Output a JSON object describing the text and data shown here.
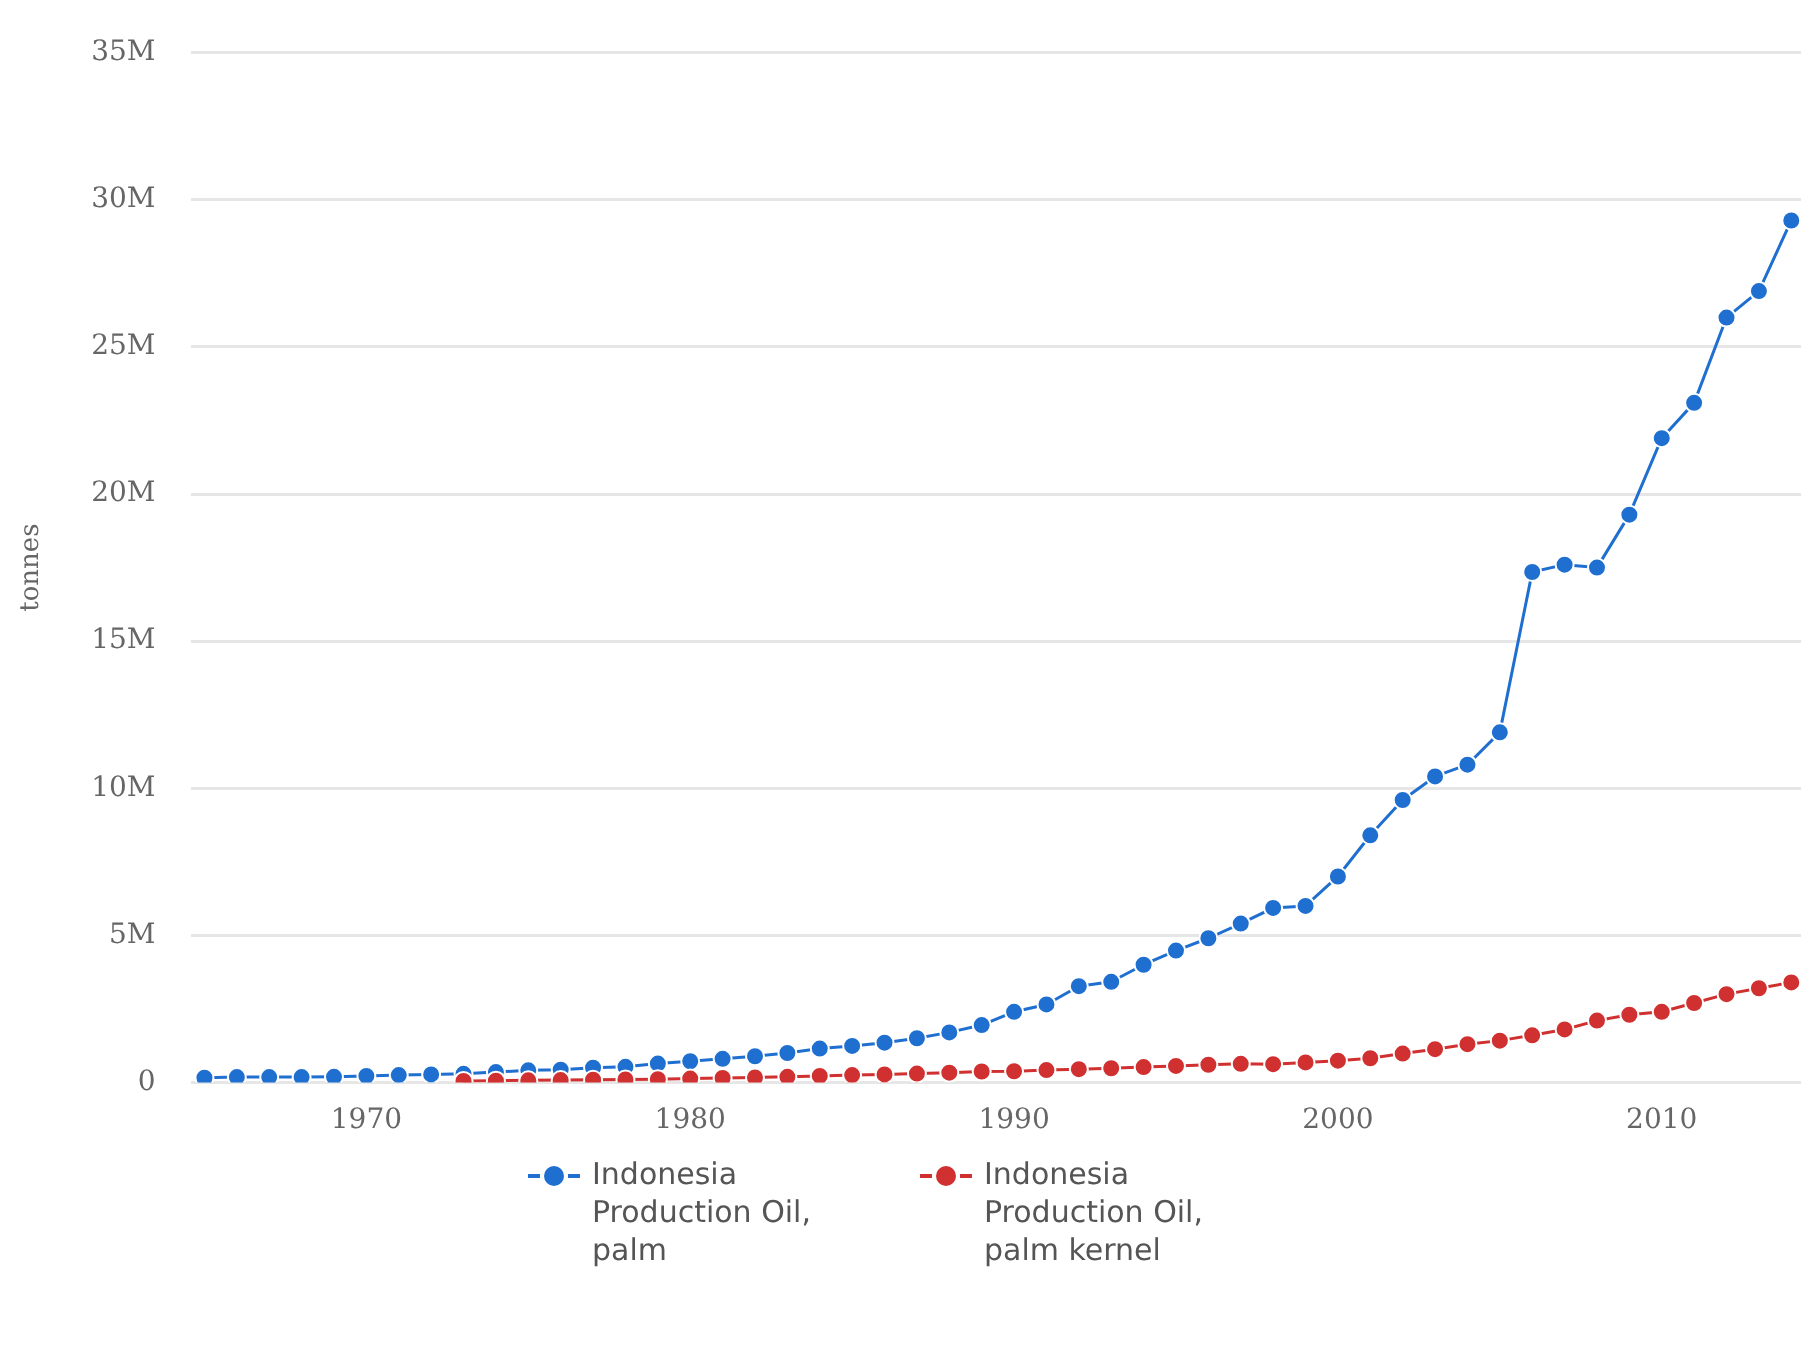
{
  "chart_data": {
    "type": "line",
    "ylabel": "tonnes",
    "x": [
      1965,
      1966,
      1967,
      1968,
      1969,
      1970,
      1971,
      1972,
      1973,
      1974,
      1975,
      1976,
      1977,
      1978,
      1979,
      1980,
      1981,
      1982,
      1983,
      1984,
      1985,
      1986,
      1987,
      1988,
      1989,
      1990,
      1991,
      1992,
      1993,
      1994,
      1995,
      1996,
      1997,
      1998,
      1999,
      2000,
      2001,
      2002,
      2003,
      2004,
      2005,
      2006,
      2007,
      2008,
      2009,
      2010,
      2011,
      2012,
      2013,
      2014
    ],
    "series": [
      {
        "name": "Indonesia Production Oil, palm",
        "color": "#1f6fd0",
        "values": [
          160000,
          180000,
          180000,
          180000,
          190000,
          220000,
          250000,
          270000,
          290000,
          350000,
          410000,
          430000,
          500000,
          530000,
          640000,
          720000,
          800000,
          890000,
          1000000,
          1150000,
          1240000,
          1350000,
          1500000,
          1700000,
          1950000,
          2400000,
          2650000,
          3270000,
          3420000,
          4000000,
          4480000,
          4900000,
          5400000,
          5930000,
          6000000,
          7000000,
          8400000,
          9600000,
          10400000,
          10800000,
          11900000,
          17350000,
          17600000,
          17500000,
          19300000,
          21900000,
          23100000,
          26000000,
          26900000,
          29300000
        ]
      },
      {
        "name": "Indonesia Production Oil, palm kernel",
        "color": "#d0302f",
        "x": [
          1973,
          1974,
          1975,
          1976,
          1977,
          1978,
          1979,
          1980,
          1981,
          1982,
          1983,
          1984,
          1985,
          1986,
          1987,
          1988,
          1989,
          1990,
          1991,
          1992,
          1993,
          1994,
          1995,
          1996,
          1997,
          1998,
          1999,
          2000,
          2001,
          2002,
          2003,
          2004,
          2005,
          2006,
          2007,
          2008,
          2009,
          2010,
          2011,
          2012,
          2013,
          2014
        ],
        "values": [
          50000,
          60000,
          70000,
          80000,
          90000,
          100000,
          110000,
          130000,
          150000,
          170000,
          190000,
          220000,
          250000,
          270000,
          300000,
          330000,
          370000,
          380000,
          420000,
          450000,
          480000,
          520000,
          560000,
          600000,
          630000,
          620000,
          680000,
          740000,
          820000,
          980000,
          1130000,
          1300000,
          1420000,
          1600000,
          1800000,
          2100000,
          2300000,
          2400000,
          2700000,
          3000000,
          3200000,
          3400000
        ]
      }
    ],
    "xlim": [
      1964.6,
      2014.3
    ],
    "xticks": [
      1970,
      1980,
      1990,
      2000,
      2010
    ],
    "ylim": [
      0,
      35000000
    ],
    "yticks": [
      0,
      {
        "value": 5000000,
        "label": "5M"
      },
      {
        "value": 10000000,
        "label": "10M"
      },
      {
        "value": 15000000,
        "label": "15M"
      },
      {
        "value": 20000000,
        "label": "20M"
      },
      {
        "value": 25000000,
        "label": "25M"
      },
      {
        "value": 30000000,
        "label": "30M"
      },
      {
        "value": 35000000,
        "label": "35M"
      }
    ],
    "grid": "y",
    "legend": "bottom",
    "marker": "circle",
    "line_style": "solid"
  }
}
